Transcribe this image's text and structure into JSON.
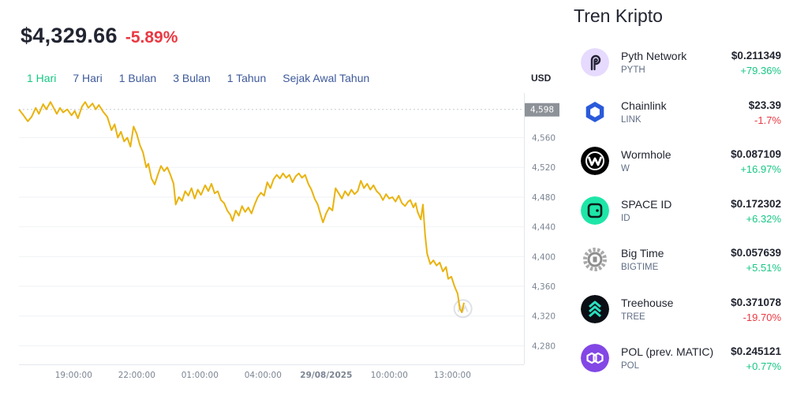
{
  "header": {
    "price": "$4,329.66",
    "change": "-5.89%"
  },
  "ranges": [
    {
      "label": "1 Hari",
      "active": true
    },
    {
      "label": "7 Hari",
      "active": false
    },
    {
      "label": "1 Bulan",
      "active": false
    },
    {
      "label": "3 Bulan",
      "active": false
    },
    {
      "label": "1 Tahun",
      "active": false
    },
    {
      "label": "Sejak Awal Tahun",
      "active": false
    }
  ],
  "currency": "USD",
  "chart_data": {
    "type": "line",
    "title": "",
    "xlabel": "",
    "ylabel": "",
    "ylim": [
      4255,
      4620
    ],
    "y_ticks": [
      4598,
      4560,
      4520,
      4480,
      4440,
      4400,
      4360,
      4320,
      4280
    ],
    "x_ticks": [
      {
        "label": "19:00:00",
        "x": 5,
        "bold": false
      },
      {
        "label": "22:00:00",
        "x": 8,
        "bold": false
      },
      {
        "label": "01:00:00",
        "x": 11,
        "bold": false
      },
      {
        "label": "04:00:00",
        "x": 14,
        "bold": false
      },
      {
        "label": "29/08/2025",
        "x": 17,
        "bold": true
      },
      {
        "label": "10:00:00",
        "x": 20,
        "bold": false
      },
      {
        "label": "13:00:00",
        "x": 23,
        "bold": false
      }
    ],
    "xlim": [
      2.4,
      26.4
    ],
    "current_value_label": "4,598",
    "current_value": 4598,
    "color": "#e9b30e",
    "grid": true,
    "series": [
      {
        "name": "",
        "points": [
          [
            2.4,
            4598
          ],
          [
            2.62,
            4590
          ],
          [
            2.82,
            4582
          ],
          [
            3.0,
            4588
          ],
          [
            3.2,
            4600
          ],
          [
            3.35,
            4592
          ],
          [
            3.55,
            4605
          ],
          [
            3.7,
            4598
          ],
          [
            3.9,
            4608
          ],
          [
            4.05,
            4600
          ],
          [
            4.2,
            4592
          ],
          [
            4.35,
            4600
          ],
          [
            4.5,
            4594
          ],
          [
            4.7,
            4598
          ],
          [
            4.9,
            4590
          ],
          [
            5.05,
            4596
          ],
          [
            5.2,
            4586
          ],
          [
            5.4,
            4602
          ],
          [
            5.55,
            4608
          ],
          [
            5.7,
            4600
          ],
          [
            5.9,
            4606
          ],
          [
            6.05,
            4598
          ],
          [
            6.2,
            4604
          ],
          [
            6.4,
            4595
          ],
          [
            6.6,
            4588
          ],
          [
            6.8,
            4570
          ],
          [
            6.95,
            4578
          ],
          [
            7.1,
            4560
          ],
          [
            7.25,
            4568
          ],
          [
            7.4,
            4555
          ],
          [
            7.55,
            4560
          ],
          [
            7.7,
            4548
          ],
          [
            7.85,
            4575
          ],
          [
            8.0,
            4565
          ],
          [
            8.15,
            4550
          ],
          [
            8.3,
            4540
          ],
          [
            8.45,
            4520
          ],
          [
            8.55,
            4525
          ],
          [
            8.7,
            4505
          ],
          [
            8.85,
            4497
          ],
          [
            9.0,
            4510
          ],
          [
            9.15,
            4522
          ],
          [
            9.3,
            4515
          ],
          [
            9.45,
            4520
          ],
          [
            9.6,
            4510
          ],
          [
            9.75,
            4498
          ],
          [
            9.85,
            4470
          ],
          [
            10.0,
            4480
          ],
          [
            10.15,
            4475
          ],
          [
            10.3,
            4488
          ],
          [
            10.45,
            4482
          ],
          [
            10.6,
            4492
          ],
          [
            10.75,
            4478
          ],
          [
            10.9,
            4490
          ],
          [
            11.05,
            4483
          ],
          [
            11.25,
            4496
          ],
          [
            11.4,
            4488
          ],
          [
            11.55,
            4498
          ],
          [
            11.7,
            4485
          ],
          [
            11.85,
            4488
          ],
          [
            12.0,
            4476
          ],
          [
            12.15,
            4472
          ],
          [
            12.3,
            4462
          ],
          [
            12.45,
            4456
          ],
          [
            12.55,
            4448
          ],
          [
            12.7,
            4462
          ],
          [
            12.85,
            4455
          ],
          [
            13.0,
            4468
          ],
          [
            13.15,
            4460
          ],
          [
            13.3,
            4466
          ],
          [
            13.45,
            4458
          ],
          [
            13.6,
            4470
          ],
          [
            13.75,
            4480
          ],
          [
            13.9,
            4486
          ],
          [
            14.05,
            4482
          ],
          [
            14.2,
            4500
          ],
          [
            14.35,
            4492
          ],
          [
            14.5,
            4504
          ],
          [
            14.65,
            4510
          ],
          [
            14.8,
            4505
          ],
          [
            14.95,
            4512
          ],
          [
            15.1,
            4506
          ],
          [
            15.25,
            4510
          ],
          [
            15.4,
            4500
          ],
          [
            15.55,
            4508
          ],
          [
            15.7,
            4512
          ],
          [
            15.85,
            4506
          ],
          [
            16.0,
            4510
          ],
          [
            16.15,
            4498
          ],
          [
            16.3,
            4490
          ],
          [
            16.45,
            4478
          ],
          [
            16.6,
            4470
          ],
          [
            16.75,
            4455
          ],
          [
            16.85,
            4446
          ],
          [
            17.0,
            4458
          ],
          [
            17.15,
            4466
          ],
          [
            17.3,
            4462
          ],
          [
            17.45,
            4492
          ],
          [
            17.6,
            4485
          ],
          [
            17.75,
            4478
          ],
          [
            17.9,
            4488
          ],
          [
            18.05,
            4482
          ],
          [
            18.2,
            4490
          ],
          [
            18.35,
            4484
          ],
          [
            18.5,
            4488
          ],
          [
            18.65,
            4502
          ],
          [
            18.8,
            4492
          ],
          [
            18.95,
            4498
          ],
          [
            19.1,
            4490
          ],
          [
            19.25,
            4496
          ],
          [
            19.4,
            4488
          ],
          [
            19.55,
            4484
          ],
          [
            19.7,
            4476
          ],
          [
            19.85,
            4484
          ],
          [
            20.0,
            4478
          ],
          [
            20.15,
            4480
          ],
          [
            20.3,
            4474
          ],
          [
            20.45,
            4482
          ],
          [
            20.6,
            4472
          ],
          [
            20.75,
            4468
          ],
          [
            20.9,
            4474
          ],
          [
            21.0,
            4476
          ],
          [
            21.15,
            4466
          ],
          [
            21.25,
            4472
          ],
          [
            21.35,
            4460
          ],
          [
            21.5,
            4450
          ],
          [
            21.6,
            4470
          ],
          [
            21.7,
            4430
          ],
          [
            21.8,
            4404
          ],
          [
            21.95,
            4390
          ],
          [
            22.1,
            4395
          ],
          [
            22.25,
            4388
          ],
          [
            22.4,
            4392
          ],
          [
            22.55,
            4380
          ],
          [
            22.7,
            4386
          ],
          [
            22.8,
            4370
          ],
          [
            22.95,
            4373
          ],
          [
            23.1,
            4360
          ],
          [
            23.25,
            4350
          ],
          [
            23.35,
            4330
          ],
          [
            23.45,
            4325
          ],
          [
            23.55,
            4338
          ]
        ]
      }
    ]
  },
  "trend": {
    "title": "Tren Kripto",
    "coins": [
      {
        "name": "Pyth Network",
        "symbol": "PYTH",
        "price": "$0.211349",
        "change": "+79.36%",
        "dir": "up",
        "icon": "pyth-icon"
      },
      {
        "name": "Chainlink",
        "symbol": "LINK",
        "price": "$23.39",
        "change": "-1.7%",
        "dir": "down",
        "icon": "chainlink-icon"
      },
      {
        "name": "Wormhole",
        "symbol": "W",
        "price": "$0.087109",
        "change": "+16.97%",
        "dir": "up",
        "icon": "wormhole-icon"
      },
      {
        "name": "SPACE ID",
        "symbol": "ID",
        "price": "$0.172302",
        "change": "+6.32%",
        "dir": "up",
        "icon": "space-id-icon"
      },
      {
        "name": "Big Time",
        "symbol": "BIGTIME",
        "price": "$0.057639",
        "change": "+5.51%",
        "dir": "up",
        "icon": "big-time-icon"
      },
      {
        "name": "Treehouse",
        "symbol": "TREE",
        "price": "$0.371078",
        "change": "-19.70%",
        "dir": "down",
        "icon": "treehouse-icon"
      },
      {
        "name": "POL (prev. MATIC)",
        "symbol": "POL",
        "price": "$0.245121",
        "change": "+0.77%",
        "dir": "up",
        "icon": "polygon-icon"
      }
    ]
  }
}
